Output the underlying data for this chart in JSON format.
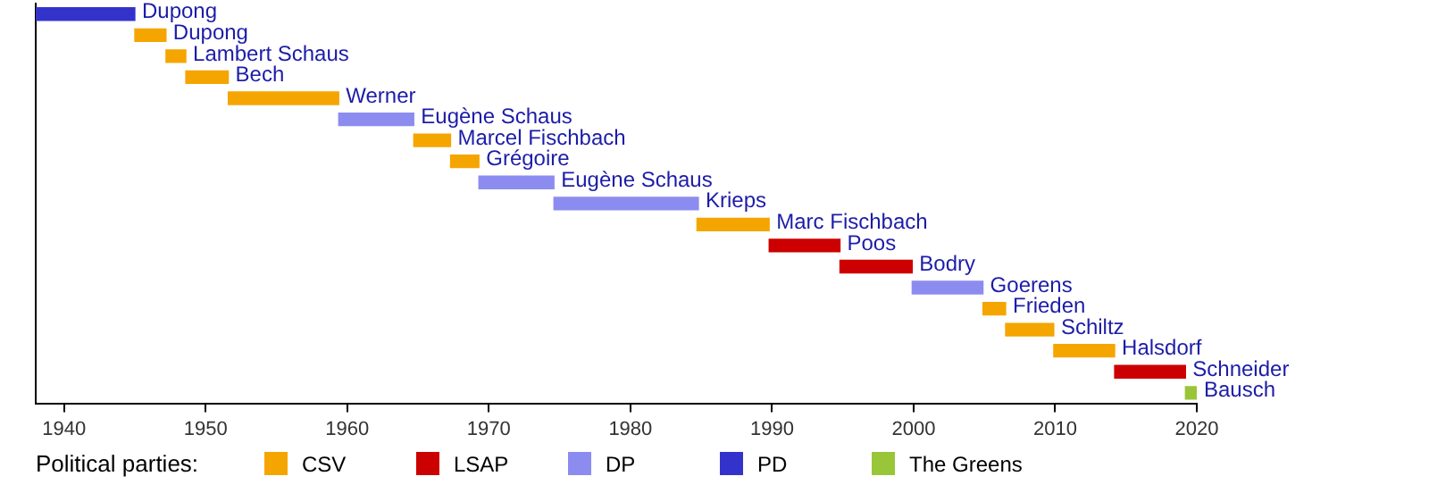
{
  "chart_data": {
    "type": "bar",
    "orientation": "horizontal",
    "legend_title": "Political parties:",
    "categories": [
      "Dupong",
      "Dupong",
      "Lambert Schaus",
      "Bech",
      "Werner",
      "Eugène Schaus",
      "Marcel Fischbach",
      "Grégoire",
      "Eugène Schaus",
      "Krieps",
      "Marc Fischbach",
      "Poos",
      "Bodry",
      "Goerens",
      "Frieden",
      "Schiltz",
      "Halsdorf",
      "Schneider",
      "Bausch"
    ],
    "series": [
      {
        "name": "CSV",
        "color": "#f5a500",
        "values": [
          null,
          2.2,
          1.4,
          3.0,
          7.8,
          null,
          2.6,
          2.0,
          null,
          null,
          5.1,
          null,
          null,
          null,
          1.6,
          3.4,
          4.3,
          null,
          null
        ],
        "base": [
          null,
          1945.0,
          1947.2,
          1948.6,
          1951.6,
          null,
          1964.7,
          1967.3,
          null,
          null,
          1984.7,
          null,
          null,
          null,
          2004.9,
          2006.5,
          2009.9,
          null,
          null
        ]
      },
      {
        "name": "LSAP",
        "color": "#cc0000",
        "values": [
          null,
          null,
          null,
          null,
          null,
          null,
          null,
          null,
          null,
          null,
          null,
          5.0,
          5.1,
          null,
          null,
          null,
          null,
          5.0,
          null
        ],
        "base": [
          null,
          null,
          null,
          null,
          null,
          null,
          null,
          null,
          null,
          null,
          null,
          1989.8,
          1994.8,
          null,
          null,
          null,
          null,
          2014.2,
          null
        ]
      },
      {
        "name": "DP",
        "color": "#8c8cf0",
        "values": [
          null,
          null,
          null,
          null,
          null,
          5.3,
          null,
          null,
          5.3,
          10.2,
          null,
          null,
          null,
          5.0,
          null,
          null,
          null,
          null,
          null
        ],
        "base": [
          null,
          null,
          null,
          null,
          null,
          1959.4,
          null,
          null,
          1969.3,
          1974.6,
          null,
          null,
          null,
          1999.9,
          null,
          null,
          null,
          null,
          null
        ]
      },
      {
        "name": "PD",
        "color": "#3333cc",
        "values": [
          7.0,
          null,
          null,
          null,
          null,
          null,
          null,
          null,
          null,
          null,
          null,
          null,
          null,
          null,
          null,
          null,
          null,
          null,
          null
        ],
        "base": [
          1938,
          null,
          null,
          null,
          null,
          null,
          null,
          null,
          null,
          null,
          null,
          null,
          null,
          null,
          null,
          null,
          null,
          null,
          null
        ]
      },
      {
        "name": "The Greens",
        "color": "#99c639",
        "values": [
          null,
          null,
          null,
          null,
          null,
          null,
          null,
          null,
          null,
          null,
          null,
          null,
          null,
          null,
          null,
          null,
          null,
          null,
          0.8
        ],
        "base": [
          null,
          null,
          null,
          null,
          null,
          null,
          null,
          null,
          null,
          null,
          null,
          null,
          null,
          null,
          null,
          null,
          null,
          null,
          2019.2
        ]
      }
    ],
    "xlim": [
      1938,
      2020
    ],
    "xticks": [
      1940,
      1950,
      1960,
      1970,
      1980,
      1990,
      2000,
      2010,
      2020
    ],
    "tick_labels": "x",
    "grid": false,
    "legend": "bottom"
  }
}
